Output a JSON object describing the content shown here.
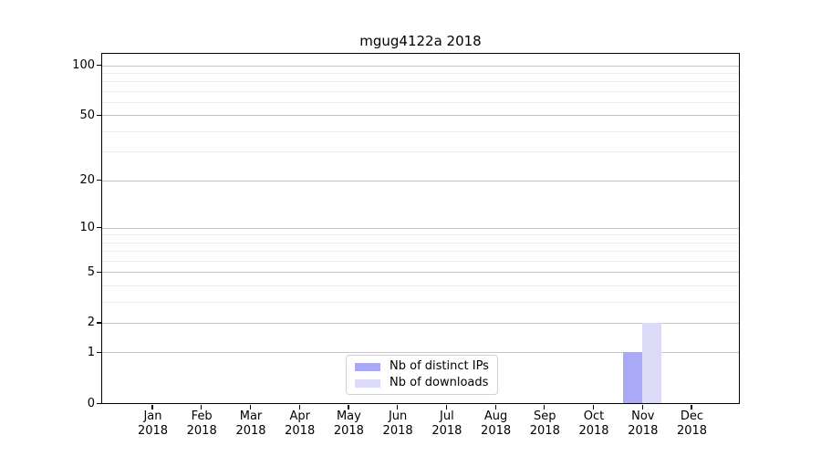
{
  "chart_data": {
    "type": "bar",
    "title": "mgug4122a 2018",
    "categories": [
      "Jan",
      "Feb",
      "Mar",
      "Apr",
      "May",
      "Jun",
      "Jul",
      "Aug",
      "Sep",
      "Oct",
      "Nov",
      "Dec"
    ],
    "x_year_label": "2018",
    "series": [
      {
        "name": "Nb of distinct IPs",
        "color": "#a9a9f7",
        "values": [
          0,
          0,
          0,
          0,
          0,
          0,
          0,
          0,
          0,
          0,
          1,
          0
        ]
      },
      {
        "name": "Nb of downloads",
        "color": "#dbdbf8",
        "values": [
          0,
          0,
          0,
          0,
          0,
          0,
          0,
          0,
          0,
          0,
          2,
          0
        ]
      }
    ],
    "y_axis": {
      "scale": "log1p",
      "major_ticks": [
        0,
        1,
        2,
        5,
        10,
        20,
        50,
        100
      ],
      "minor_ticks": [
        3,
        4,
        6,
        7,
        8,
        9,
        30,
        40,
        60,
        70,
        80,
        90
      ],
      "ylim": [
        0,
        117
      ]
    },
    "grid": {
      "major_color": "#c6c6c6",
      "minor_color": "#ededed"
    },
    "legend": {
      "position": "bottom-center"
    },
    "colors": {
      "spine": "#000000",
      "background": "#ffffff"
    }
  }
}
